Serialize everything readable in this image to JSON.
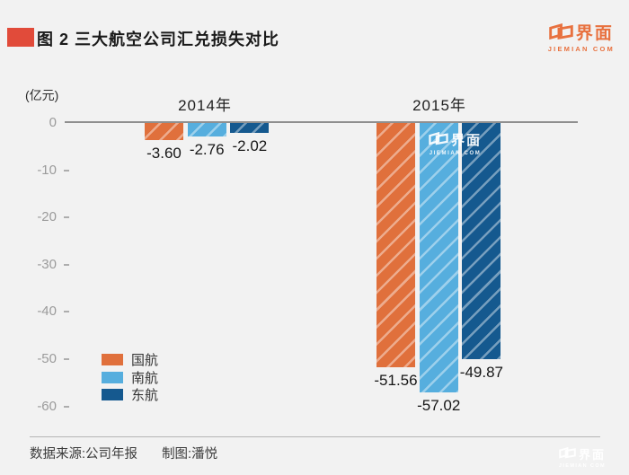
{
  "header": {
    "title": "图 2  三大航空公司汇兑损失对比",
    "accent_color": "#E14B3A"
  },
  "brand": {
    "name_cn": "界面",
    "name_en": "JIEMIAN COM",
    "logo_color": "#E8713F"
  },
  "chart_data": {
    "type": "bar",
    "title": "图 2  三大航空公司汇兑损失对比",
    "unit_label": "(亿元)",
    "groups": [
      "2014年",
      "2015年"
    ],
    "series": [
      {
        "name": "国航",
        "color": "#E0703C",
        "values": [
          -3.6,
          -51.56
        ]
      },
      {
        "name": "南航",
        "color": "#56AEDE",
        "values": [
          -2.76,
          -57.02
        ]
      },
      {
        "name": "东航",
        "color": "#15598F",
        "values": [
          -2.02,
          -49.87
        ]
      }
    ],
    "value_labels": [
      [
        "-3.60",
        "-2.76",
        "-2.02"
      ],
      [
        "-51.56",
        "-57.02",
        "-49.87"
      ]
    ],
    "yticks": [
      "0",
      "-10",
      "-20",
      "-30",
      "-40",
      "-50",
      "-60"
    ],
    "ylim": [
      -60,
      0
    ],
    "grid": false,
    "bar_hatch": "diagonal-light-stripes",
    "legend_position": "inside-bottom-left"
  },
  "footer": {
    "source": "数据来源:公司年报",
    "credit": "制图:潘悦"
  }
}
